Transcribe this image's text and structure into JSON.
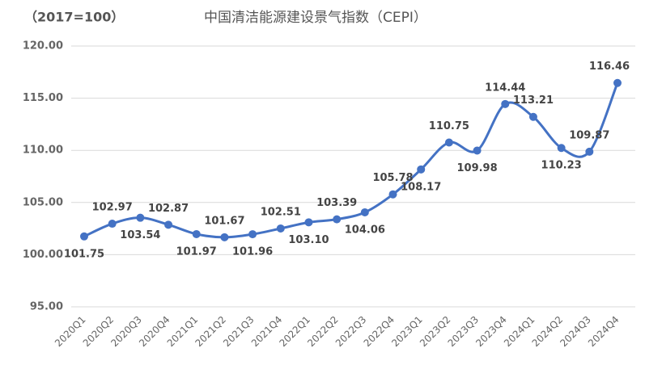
{
  "chart_data": {
    "type": "line",
    "title": "中国清洁能源建设景气指数（CEPI）",
    "subtitle": "（2017=100）",
    "categories": [
      "2020Q1",
      "2020Q2",
      "2020Q3",
      "2020Q4",
      "2021Q1",
      "2021Q2",
      "2021Q3",
      "2021Q4",
      "2022Q1",
      "2022Q2",
      "2022Q3",
      "2022Q4",
      "2023Q1",
      "2023Q2",
      "2023Q3",
      "2023Q4",
      "2024Q1",
      "2024Q2",
      "2024Q3",
      "2024Q4"
    ],
    "series": [
      {
        "name": "CEPI",
        "color": "#4472c4",
        "values": [
          101.75,
          102.97,
          103.54,
          102.87,
          101.97,
          101.67,
          101.96,
          102.51,
          103.1,
          103.39,
          104.06,
          105.78,
          108.17,
          110.75,
          109.98,
          114.44,
          113.21,
          110.23,
          109.87,
          116.46
        ],
        "value_labels": [
          "101.75",
          "102.97",
          "103.54",
          "102.87",
          "101.97",
          "101.67",
          "101.96",
          "102.51",
          "103.10",
          "103.39",
          "104.06",
          "105.78",
          "108.17",
          "110.75",
          "109.98",
          "114.44",
          "113.21",
          "110.23",
          "109.87",
          "116.46"
        ]
      }
    ],
    "ylim": [
      95,
      120
    ],
    "yticks": [
      {
        "value": 95,
        "label": "95.00"
      },
      {
        "value": 100,
        "label": "100.00"
      },
      {
        "value": 105,
        "label": "105.00"
      },
      {
        "value": 110,
        "label": "110.00"
      },
      {
        "value": 115,
        "label": "115.00"
      },
      {
        "value": 120,
        "label": "120.00"
      }
    ],
    "grid": true
  }
}
